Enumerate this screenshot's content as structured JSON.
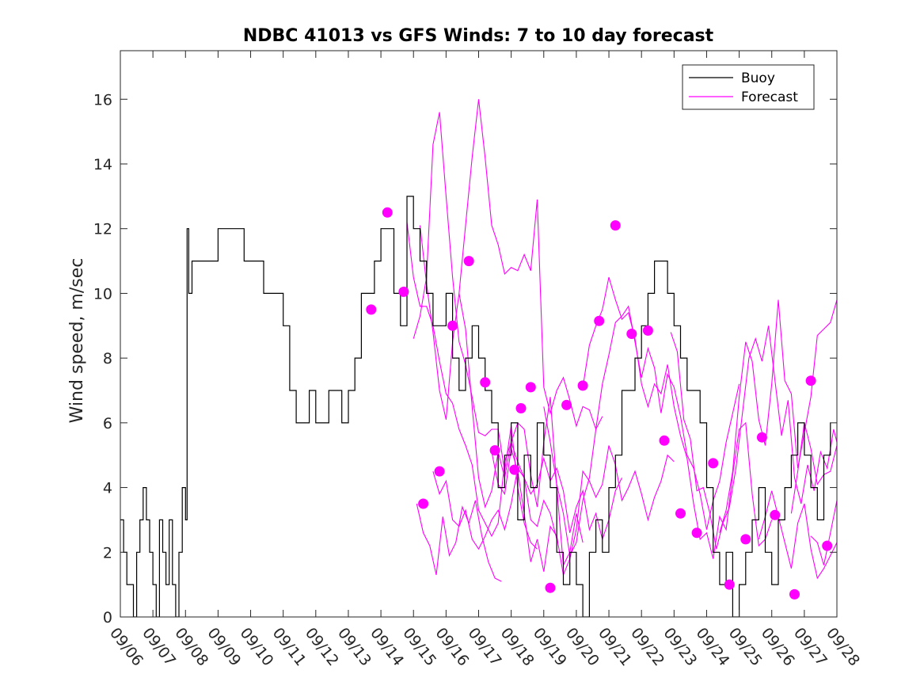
{
  "chart_data": {
    "type": "line",
    "title": "NDBC 41013 vs GFS Winds: 7 to 10 day forecast",
    "xlabel": "",
    "ylabel": "Wind speed, m/sec",
    "ylim": [
      0,
      17.5
    ],
    "xlim": [
      0,
      22
    ],
    "yticks": [
      0,
      2,
      4,
      6,
      8,
      10,
      12,
      14,
      16
    ],
    "xtick_labels": [
      "09/06",
      "09/07",
      "09/08",
      "09/09",
      "09/10",
      "09/11",
      "09/12",
      "09/13",
      "09/14",
      "09/15",
      "09/16",
      "09/17",
      "09/18",
      "09/19",
      "09/20",
      "09/21",
      "09/22",
      "09/23",
      "09/24",
      "09/25",
      "09/26",
      "09/27",
      "09/28"
    ],
    "legend": {
      "position": "top-right",
      "entries": [
        "Buoy",
        "Forecast"
      ]
    },
    "colors": {
      "buoy": "#000000",
      "forecast": "#ff00ff"
    },
    "buoy": {
      "name": "Buoy",
      "x": [
        0,
        0.1,
        0.2,
        0.3,
        0.4,
        0.5,
        0.6,
        0.7,
        0.8,
        0.9,
        1.0,
        1.1,
        1.2,
        1.3,
        1.4,
        1.5,
        1.6,
        1.7,
        1.8,
        1.9,
        2.0,
        2.05,
        2.1,
        2.2,
        2.4,
        2.6,
        2.8,
        3.0,
        3.2,
        3.4,
        3.6,
        3.8,
        4.0,
        4.2,
        4.4,
        4.6,
        4.8,
        5.0,
        5.2,
        5.4,
        5.6,
        5.8,
        6.0,
        6.2,
        6.4,
        6.6,
        6.8,
        7.0,
        7.2,
        7.4,
        7.6,
        7.8,
        8.0,
        8.2,
        8.4,
        8.6,
        8.8,
        9.0,
        9.2,
        9.4,
        9.6,
        9.8,
        10.0,
        10.2,
        10.4,
        10.6,
        10.8,
        11.0,
        11.2,
        11.4,
        11.6,
        11.8,
        12.0,
        12.2,
        12.4,
        12.6,
        12.8,
        13.0,
        13.2,
        13.4,
        13.6,
        13.8,
        14.0,
        14.2,
        14.4,
        14.6,
        14.8,
        15.0,
        15.2,
        15.4,
        15.6,
        15.8,
        16.0,
        16.2,
        16.4,
        16.6,
        16.8,
        17.0,
        17.2,
        17.4,
        17.6,
        17.8,
        18.0,
        18.2,
        18.4,
        18.6,
        18.8,
        19.0,
        19.2,
        19.4,
        19.6,
        19.8,
        20.0,
        20.2,
        20.4,
        20.6,
        20.8,
        21.0,
        21.2,
        21.4,
        21.6,
        21.8
      ],
      "y": [
        3,
        2,
        1,
        1,
        0,
        2,
        3,
        4,
        3,
        2,
        1,
        0,
        3,
        2,
        1,
        3,
        1,
        0,
        2,
        4,
        3,
        12,
        10,
        11,
        11,
        11,
        11,
        12,
        12,
        12,
        12,
        11,
        11,
        11,
        10,
        10,
        10,
        9,
        7,
        6,
        6,
        7,
        6,
        6,
        7,
        7,
        6,
        7,
        8,
        10,
        10,
        11,
        12,
        12,
        10,
        9,
        13,
        12,
        11,
        10,
        9,
        9,
        10,
        8,
        7,
        8,
        9,
        8,
        7,
        6,
        4,
        5,
        6,
        3,
        5,
        4,
        6,
        5,
        4,
        2,
        1,
        2,
        1,
        0,
        2,
        3,
        2,
        4,
        5,
        7,
        7,
        8,
        9,
        10,
        11,
        11,
        10,
        9,
        8,
        7,
        7,
        6,
        4,
        2,
        1,
        2,
        0,
        1,
        2,
        3,
        4,
        2,
        1,
        3,
        4,
        5,
        6,
        5,
        4,
        3,
        5,
        6
      ],
      "comment": "approximate trace read from chart"
    },
    "forecasts": [
      {
        "name": "Forecast",
        "x": [
          9.0,
          9.2,
          9.4,
          9.6,
          9.8,
          10.0,
          10.2,
          10.4,
          10.6,
          10.8,
          11.0,
          11.2,
          11.4,
          11.6,
          11.8,
          12.0,
          12.2,
          12.4,
          12.6,
          12.8
        ],
        "y": [
          8.6,
          9.3,
          10.5,
          14.6,
          15.6,
          13.0,
          10.5,
          8.5,
          7.8,
          6.8,
          5.7,
          5.6,
          5.8,
          5.8,
          4.5,
          5.9,
          4.0,
          2.9,
          2.3,
          2.1
        ]
      },
      {
        "name": "Forecast",
        "x": [
          10.4,
          10.6,
          10.8,
          11.0,
          11.2,
          11.4,
          11.6,
          11.8,
          12.0,
          12.2,
          12.4,
          12.6,
          12.8,
          13.0,
          13.2,
          13.4,
          13.6,
          13.8,
          14.0,
          14.2,
          14.4,
          14.6,
          14.8
        ],
        "y": [
          10.0,
          12.1,
          14.2,
          16.0,
          14.2,
          12.1,
          11.5,
          10.6,
          10.8,
          10.7,
          11.2,
          10.7,
          12.9,
          7.1,
          6.3,
          7.0,
          7.4,
          6.7,
          5.9,
          6.5,
          6.4,
          5.8,
          6.2
        ]
      },
      {
        "name": "Forecast",
        "x": [
          9.2,
          9.4,
          9.6,
          9.8,
          10.0,
          10.2,
          10.4,
          10.6,
          10.8,
          11.0,
          11.2,
          11.4,
          11.6,
          11.8,
          12.0,
          12.2,
          12.4,
          12.6,
          12.8,
          13.0,
          13.2,
          13.4,
          13.6,
          13.8,
          14.0,
          14.2
        ],
        "y": [
          12.1,
          10.3,
          8.8,
          7.0,
          6.1,
          8.5,
          10.0,
          8.9,
          6.5,
          4.3,
          3.4,
          3.9,
          5.1,
          4.3,
          5.4,
          6.0,
          5.8,
          4.4,
          3.4,
          5.4,
          6.8,
          4.0,
          1.6,
          2.0,
          3.2,
          2.3
        ]
      },
      {
        "name": "Forecast",
        "x": [
          8.8,
          9.0,
          9.2,
          9.4,
          9.6,
          9.8,
          10.0,
          10.2,
          10.4,
          10.6,
          10.8,
          11.0,
          11.2,
          11.4,
          11.6,
          11.8,
          12.0,
          12.2,
          12.4,
          12.6,
          12.8,
          13.0,
          13.2,
          13.4
        ],
        "y": [
          12.2,
          10.5,
          9.6,
          9.6,
          9.0,
          7.9,
          6.9,
          6.6,
          5.8,
          5.3,
          4.7,
          3.3,
          2.9,
          2.5,
          2.9,
          4.8,
          5.4,
          4.8,
          4.3,
          3.0,
          2.8,
          3.6,
          3.2,
          2.4
        ]
      },
      {
        "name": "Forecast",
        "x": [
          9.1,
          9.3,
          9.5,
          9.7,
          9.9,
          10.1,
          10.3,
          10.5,
          10.7,
          10.9,
          11.1,
          11.3,
          11.5,
          11.7
        ],
        "y": [
          3.5,
          2.6,
          2.2,
          1.3,
          3.1,
          1.9,
          2.3,
          3.4,
          2.9,
          3.6,
          2.5,
          1.7,
          1.2,
          1.1
        ]
      },
      {
        "name": "Forecast",
        "x": [
          9.6,
          9.8,
          10.0,
          10.2,
          10.4,
          10.6,
          10.8,
          11.0,
          11.2,
          11.4,
          11.6,
          11.8,
          12.0,
          12.2,
          12.4,
          12.6,
          12.8,
          13.0,
          13.2,
          13.4,
          13.6,
          13.8,
          14.0,
          14.2,
          14.4,
          14.6,
          14.8,
          15.0,
          15.2,
          15.4
        ],
        "y": [
          4.5,
          3.8,
          4.2,
          3.0,
          2.8,
          3.3,
          2.4,
          2.1,
          2.5,
          3.0,
          3.3,
          2.7,
          3.5,
          4.6,
          4.3,
          3.8,
          4.1,
          4.9,
          4.2,
          4.6,
          3.9,
          2.6,
          3.4,
          3.9,
          2.7,
          3.2,
          2.4,
          3.0,
          3.9,
          4.3
        ]
      },
      {
        "name": "Forecast",
        "x": [
          11.4,
          11.6,
          11.8,
          12.0,
          12.2,
          12.4,
          12.6,
          12.8,
          13.0,
          13.2,
          13.4,
          13.6,
          13.8,
          14.0,
          14.2,
          14.4,
          14.6,
          14.8,
          15.0,
          15.2,
          15.4,
          15.6,
          15.8,
          16.0,
          16.2,
          16.4,
          16.6,
          16.8,
          17.0
        ],
        "y": [
          5.1,
          4.1,
          3.8,
          5.2,
          4.5,
          3.2,
          1.7,
          2.4,
          1.4,
          2.8,
          2.5,
          1.3,
          1.8,
          2.7,
          4.5,
          4.2,
          3.7,
          4.1,
          5.3,
          4.7,
          3.6,
          4.0,
          4.5,
          3.8,
          3.0,
          3.7,
          4.2,
          5.0,
          4.8
        ]
      },
      {
        "name": "Forecast",
        "x": [
          13.0,
          13.2,
          13.4,
          13.6,
          13.8,
          14.0,
          14.2,
          14.4,
          14.6,
          14.8,
          15.0,
          15.2,
          15.4,
          15.6,
          15.8,
          16.0,
          16.2,
          16.4,
          16.6,
          16.8,
          17.0,
          17.2,
          17.4,
          17.6,
          17.8,
          18.0,
          18.2,
          18.4,
          18.6,
          18.8,
          19.0
        ],
        "y": [
          6.5,
          5.4,
          4.1,
          3.2,
          1.9,
          2.3,
          3.6,
          4.3,
          5.8,
          7.2,
          8.1,
          9.1,
          9.3,
          9.6,
          8.5,
          7.4,
          8.3,
          7.7,
          6.3,
          7.5,
          7.1,
          6.2,
          5.0,
          4.6,
          3.8,
          2.7,
          3.6,
          4.2,
          5.4,
          6.3,
          7.2
        ]
      },
      {
        "name": "Forecast",
        "x": [
          14.2,
          14.4,
          14.6,
          14.8,
          15.0,
          15.2,
          15.4,
          15.6,
          15.8,
          16.0,
          16.2,
          16.4,
          16.6,
          16.8,
          17.0,
          17.2,
          17.4,
          17.6,
          17.8,
          18.0,
          18.2,
          18.4,
          18.6,
          18.8,
          19.0,
          19.2,
          19.4,
          19.6,
          19.8,
          20.0
        ],
        "y": [
          7.1,
          8.4,
          9.0,
          9.5,
          10.5,
          9.8,
          9.2,
          9.4,
          8.6,
          7.2,
          6.5,
          7.2,
          6.9,
          7.8,
          6.5,
          5.6,
          4.9,
          3.5,
          2.4,
          2.6,
          1.8,
          3.1,
          2.7,
          4.4,
          5.8,
          6.0,
          3.8,
          2.2,
          2.4,
          3.0
        ]
      },
      {
        "name": "Forecast",
        "x": [
          16.9,
          17.1,
          17.3,
          17.5,
          17.7,
          17.9,
          18.1,
          18.3,
          18.5,
          18.7,
          18.9,
          19.1,
          19.3,
          19.5,
          19.7,
          19.9,
          20.1,
          20.3,
          20.5,
          20.7,
          20.9,
          21.1,
          21.3,
          21.5,
          21.7,
          21.9,
          22.0
        ],
        "y": [
          8.8,
          8.2,
          6.1,
          5.5,
          3.9,
          4.0,
          3.2,
          2.1,
          2.9,
          3.4,
          4.6,
          6.3,
          8.0,
          8.6,
          7.9,
          9.0,
          7.3,
          5.6,
          6.7,
          4.3,
          3.5,
          4.7,
          3.9,
          5.1,
          4.6,
          5.8,
          5.4
        ]
      },
      {
        "name": "Forecast",
        "x": [
          18.4,
          18.6,
          18.8,
          19.0,
          19.2,
          19.4,
          19.6,
          19.8,
          20.0,
          20.2,
          20.4,
          20.6,
          20.8,
          21.0,
          21.2,
          21.4,
          21.6,
          21.8,
          22.0
        ],
        "y": [
          2.6,
          3.3,
          4.5,
          6.8,
          8.5,
          7.9,
          6.1,
          5.3,
          7.2,
          9.8,
          7.3,
          6.9,
          4.6,
          5.7,
          6.8,
          8.7,
          8.9,
          9.1,
          9.8
        ]
      },
      {
        "name": "Forecast",
        "x": [
          19.6,
          19.8,
          20.0,
          20.2,
          20.4,
          20.6,
          20.8,
          21.0,
          21.2,
          21.4,
          21.6,
          21.8,
          22.0
        ],
        "y": [
          2.4,
          3.1,
          3.9,
          3.1,
          2.3,
          1.5,
          2.9,
          3.5,
          2.1,
          1.2,
          1.5,
          1.9,
          2.3
        ]
      },
      {
        "name": "Forecast",
        "x": [
          20.6,
          20.8,
          21.0,
          21.2,
          21.4,
          21.6,
          21.8,
          22.0
        ],
        "y": [
          3.2,
          4.5,
          6.0,
          5.2,
          4.1,
          4.4,
          4.5,
          5.3
        ]
      },
      {
        "name": "Forecast",
        "x": [
          21.2,
          21.4,
          21.6,
          21.8,
          22.0
        ],
        "y": [
          2.5,
          2.3,
          1.6,
          2.6,
          3.6
        ]
      }
    ],
    "forecast_markers": {
      "x": [
        7.7,
        8.2,
        8.7,
        9.3,
        9.8,
        10.2,
        10.7,
        11.2,
        11.5,
        12.1,
        12.3,
        12.6,
        13.2,
        13.7,
        14.2,
        14.7,
        15.2,
        15.7,
        16.2,
        16.7,
        17.2,
        17.7,
        18.2,
        18.7,
        19.2,
        19.7,
        20.1,
        20.7,
        21.2,
        21.7
      ],
      "y": [
        9.5,
        12.5,
        10.05,
        3.5,
        4.5,
        9.0,
        11.0,
        7.25,
        5.15,
        4.55,
        6.45,
        7.1,
        0.9,
        6.55,
        7.15,
        9.15,
        12.1,
        8.75,
        8.85,
        5.45,
        3.2,
        2.6,
        4.75,
        1.0,
        2.4,
        5.55,
        3.15,
        0.7,
        7.3,
        2.2
      ]
    }
  }
}
